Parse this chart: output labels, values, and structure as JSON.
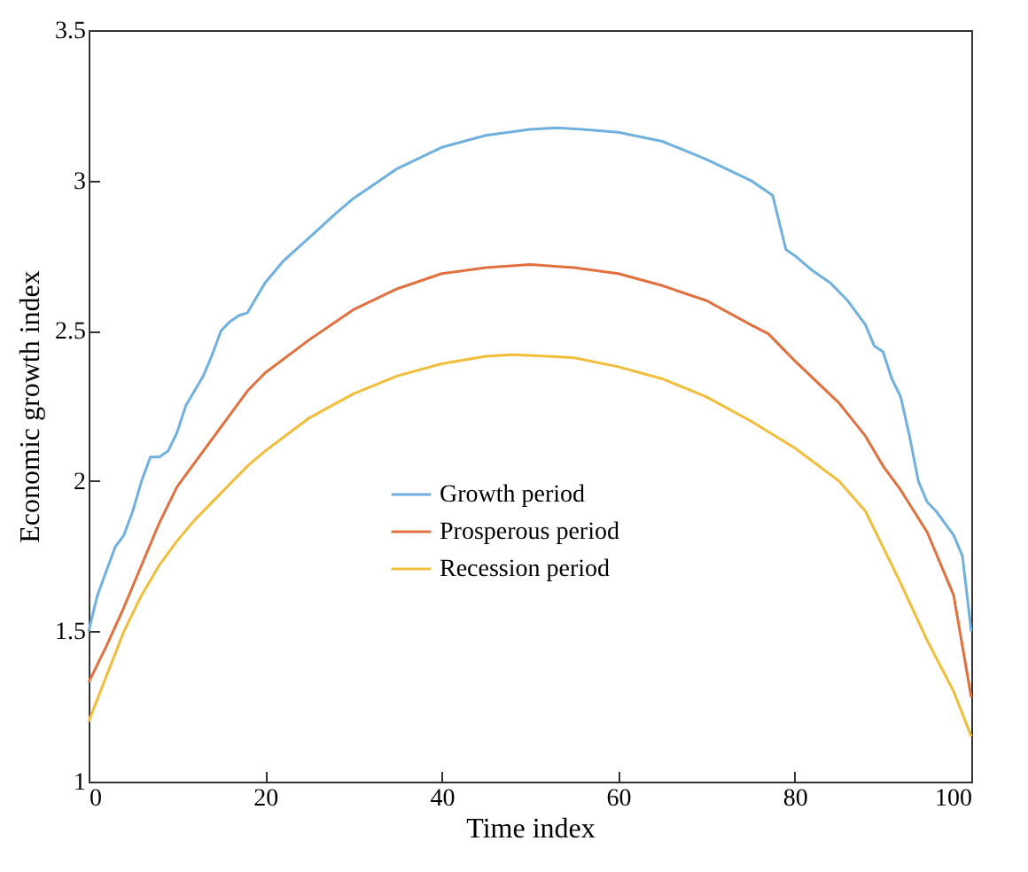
{
  "chart_data": {
    "type": "line",
    "xlabel": "Time index",
    "ylabel": "Economic growth index",
    "xlim": [
      0,
      100
    ],
    "ylim": [
      1,
      3.5
    ],
    "xticks": [
      0,
      20,
      40,
      60,
      80,
      100
    ],
    "yticks": [
      1,
      1.5,
      2,
      2.5,
      3,
      3.5
    ],
    "grid": false,
    "legend": "center",
    "line_style": "solid",
    "marker": "none",
    "series": [
      {
        "name": "Growth period",
        "color": "#6fb0df",
        "x": [
          0,
          1,
          2,
          3,
          4,
          5,
          6,
          7,
          8,
          9,
          10,
          11,
          12,
          13,
          14,
          15,
          16,
          17,
          18,
          20,
          22,
          25,
          28,
          30,
          35,
          40,
          45,
          50,
          53,
          56,
          60,
          65,
          70,
          75,
          77.5,
          79,
          80,
          82,
          84,
          86,
          88,
          89,
          90,
          91,
          92,
          93,
          94,
          95,
          96,
          97,
          98,
          99,
          100
        ],
        "values": [
          1.5,
          1.62,
          1.7,
          1.78,
          1.82,
          1.9,
          2,
          2.08,
          2.08,
          2.1,
          2.16,
          2.25,
          2.3,
          2.35,
          2.42,
          2.5,
          2.53,
          2.55,
          2.56,
          2.66,
          2.73,
          2.81,
          2.89,
          2.94,
          3.04,
          3.11,
          3.15,
          3.17,
          3.175,
          3.17,
          3.16,
          3.13,
          3.07,
          3.0,
          2.95,
          2.77,
          2.75,
          2.7,
          2.66,
          2.6,
          2.52,
          2.45,
          2.43,
          2.34,
          2.28,
          2.15,
          2.0,
          1.93,
          1.9,
          1.86,
          1.82,
          1.75,
          1.5
        ]
      },
      {
        "name": "Prosperous period",
        "color": "#e2703f",
        "x": [
          0,
          2,
          4,
          6,
          8,
          10,
          12,
          15,
          18,
          20,
          25,
          30,
          35,
          40,
          45,
          50,
          55,
          60,
          65,
          70,
          75,
          77,
          80,
          85,
          88,
          90,
          92,
          95,
          98,
          100
        ],
        "values": [
          1.33,
          1.45,
          1.58,
          1.72,
          1.86,
          1.98,
          2.06,
          2.18,
          2.3,
          2.36,
          2.47,
          2.57,
          2.64,
          2.69,
          2.71,
          2.72,
          2.71,
          2.69,
          2.65,
          2.6,
          2.52,
          2.49,
          2.4,
          2.26,
          2.15,
          2.05,
          1.97,
          1.83,
          1.62,
          1.28
        ]
      },
      {
        "name": "Recession period",
        "color": "#f2bd3a",
        "x": [
          0,
          2,
          4,
          6,
          8,
          10,
          12,
          15,
          18,
          20,
          25,
          30,
          35,
          40,
          45,
          48,
          52,
          55,
          60,
          65,
          70,
          75,
          80,
          85,
          88,
          90,
          92,
          95,
          98,
          100
        ],
        "values": [
          1.2,
          1.35,
          1.5,
          1.62,
          1.72,
          1.8,
          1.87,
          1.96,
          2.05,
          2.1,
          2.21,
          2.29,
          2.35,
          2.39,
          2.415,
          2.42,
          2.415,
          2.41,
          2.38,
          2.34,
          2.28,
          2.2,
          2.11,
          2.0,
          1.9,
          1.78,
          1.66,
          1.47,
          1.3,
          1.15
        ]
      }
    ]
  }
}
